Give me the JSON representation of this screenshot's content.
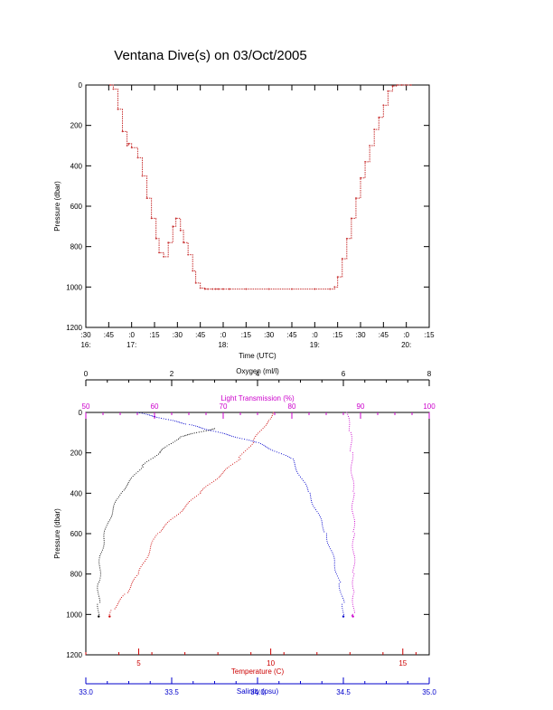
{
  "page_title": "Ventana Dive(s) on 03/Oct/2005",
  "chart_data": [
    {
      "type": "line",
      "title": "Ventana Dive(s) on 03/Oct/2005",
      "xlabel": "Time (UTC)",
      "ylabel": "Pressure (dbar)",
      "color": "#c83232",
      "y_inverted": true,
      "ylim": [
        0,
        1200
      ],
      "y_ticks": [
        "0",
        "200",
        "400",
        "600",
        "800",
        "1000",
        "1200"
      ],
      "xlim": [
        "16:30",
        "20:15"
      ],
      "x_ticks": [
        {
          "minute": ":30",
          "hour": "16:"
        },
        {
          "minute": ":45",
          "hour": ""
        },
        {
          "minute": ":0",
          "hour": "17:"
        },
        {
          "minute": ":15",
          "hour": ""
        },
        {
          "minute": ":30",
          "hour": ""
        },
        {
          "minute": ":45",
          "hour": ""
        },
        {
          "minute": ":0",
          "hour": "18:"
        },
        {
          "minute": ":15",
          "hour": ""
        },
        {
          "minute": ":30",
          "hour": ""
        },
        {
          "minute": ":45",
          "hour": ""
        },
        {
          "minute": ":0",
          "hour": "19:"
        },
        {
          "minute": ":15",
          "hour": ""
        },
        {
          "minute": ":30",
          "hour": ""
        },
        {
          "minute": ":45",
          "hour": ""
        },
        {
          "minute": ":0",
          "hour": "20:"
        },
        {
          "minute": ":15",
          "hour": ""
        }
      ],
      "series": [
        {
          "x": [
            "16:46",
            "16:48",
            "16:51",
            "16:54",
            "16:57",
            "16:58",
            "17:00",
            "17:04",
            "17:07",
            "17:10",
            "17:13",
            "17:16",
            "17:18",
            "17:21",
            "17:24",
            "17:27",
            "17:29",
            "17:32",
            "17:34",
            "17:37",
            "17:40",
            "17:42",
            "17:45",
            "17:48",
            "17:50",
            "17:53",
            "17:55",
            "17:57",
            "18:00",
            "18:04",
            "18:15",
            "18:30",
            "18:45",
            "19:00",
            "19:10",
            "19:13",
            "19:15",
            "19:18",
            "19:21",
            "19:24",
            "19:27",
            "19:30",
            "19:33",
            "19:36",
            "19:39",
            "19:42",
            "19:45",
            "19:48",
            "19:51",
            "19:54",
            "19:57",
            "20:00",
            "20:03"
          ],
          "y": [
            0,
            20,
            120,
            230,
            300,
            290,
            310,
            360,
            450,
            560,
            660,
            760,
            830,
            850,
            780,
            700,
            660,
            720,
            780,
            840,
            920,
            980,
            1005,
            1010,
            1010,
            1010,
            1010,
            1010,
            1010,
            1010,
            1010,
            1010,
            1010,
            1010,
            1010,
            1000,
            950,
            860,
            760,
            660,
            560,
            460,
            380,
            300,
            220,
            160,
            100,
            30,
            5,
            0,
            0,
            0,
            0
          ]
        }
      ]
    },
    {
      "type": "scatter",
      "ylabel": "Pressure (dbar)",
      "y_inverted": true,
      "ylim": [
        0,
        1200
      ],
      "y_ticks": [
        "0",
        "200",
        "400",
        "600",
        "800",
        "1000",
        "1200"
      ],
      "axes": [
        {
          "label": "Oxygen (ml/l)",
          "position": "top",
          "range": [
            0,
            8
          ],
          "ticks": [
            "0",
            "2",
            "4",
            "6",
            "8"
          ],
          "color": "#000000"
        },
        {
          "label": "Light Transmission (%)",
          "position": "top",
          "range": [
            50,
            100
          ],
          "ticks": [
            "50",
            "60",
            "70",
            "80",
            "90",
            "100"
          ],
          "color": "#cc00cc"
        },
        {
          "label": "Temperature (C)",
          "position": "bottom",
          "range": [
            3,
            16
          ],
          "ticks": [
            "5",
            "10",
            "15"
          ],
          "color": "#cc0000"
        },
        {
          "label": "Salinity (psu)",
          "position": "bottom",
          "range": [
            33.0,
            35.0
          ],
          "ticks": [
            "33.0",
            "33.5",
            "34.0",
            "34.5",
            "35.0"
          ],
          "color": "#0000cc"
        }
      ],
      "series": [
        {
          "name": "Oxygen",
          "color": "#000000",
          "x": [
            3.0,
            2.2,
            1.7,
            1.3,
            0.8,
            0.5,
            0.35,
            0.3,
            0.3,
            0.3
          ],
          "y": [
            80,
            120,
            200,
            270,
            400,
            550,
            700,
            850,
            950,
            1010
          ]
        },
        {
          "name": "Light Transmission",
          "color": "#cc00cc",
          "x": [
            88.0,
            88.5,
            88.7,
            88.9,
            89.0,
            89.0,
            89.0,
            89.0,
            88.9
          ],
          "y": [
            0,
            100,
            200,
            400,
            600,
            800,
            900,
            1000,
            1010
          ]
        },
        {
          "name": "Temperature",
          "color": "#cc0000",
          "x": [
            10.1,
            9.9,
            9.3,
            8.8,
            7.3,
            5.7,
            5.0,
            4.5,
            4.0,
            3.9
          ],
          "y": [
            0,
            40,
            150,
            230,
            400,
            600,
            800,
            900,
            980,
            1010
          ]
        },
        {
          "name": "Salinity",
          "color": "#0000cc",
          "x": [
            33.3,
            33.6,
            34.0,
            34.2,
            34.3,
            34.4,
            34.45,
            34.48,
            34.5,
            34.5
          ],
          "y": [
            0,
            60,
            150,
            230,
            400,
            600,
            750,
            850,
            950,
            1010
          ]
        }
      ]
    }
  ]
}
